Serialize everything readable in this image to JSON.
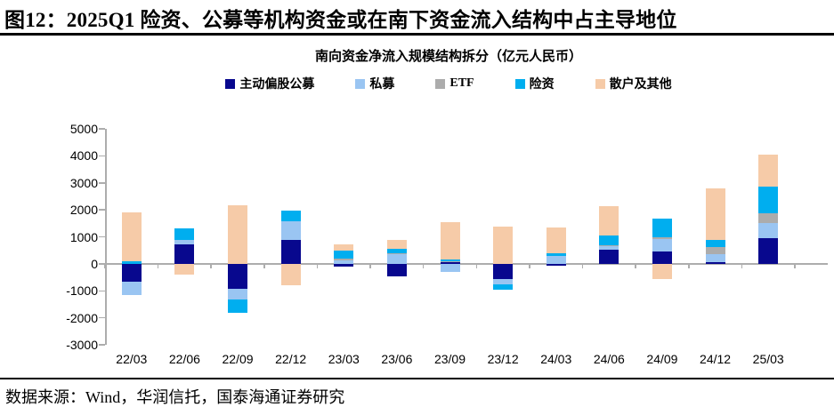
{
  "title": "图12：2025Q1 险资、公募等机构资金或在南下资金流入结构中占主导地位",
  "source": "数据来源：Wind，华润信托，国泰海通证券研究",
  "chart_data": {
    "type": "bar",
    "stacked": true,
    "title": "南向资金净流入规模结构拆分（亿元人民币）",
    "categories": [
      "22/03",
      "22/06",
      "22/09",
      "22/12",
      "23/03",
      "23/06",
      "23/09",
      "23/12",
      "24/03",
      "24/06",
      "24/09",
      "24/12",
      "25/03"
    ],
    "series": [
      {
        "name": "主动偏股公募",
        "color": "#08088E",
        "values": [
          -660,
          720,
          -940,
          890,
          -100,
          -460,
          50,
          -550,
          -60,
          520,
          465,
          50,
          950
        ]
      },
      {
        "name": "私募",
        "color": "#9AC5F2",
        "values": [
          -510,
          180,
          -375,
          700,
          130,
          370,
          -300,
          -210,
          280,
          120,
          440,
          300,
          570
        ]
      },
      {
        "name": "ETF",
        "color": "#ACACAC",
        "values": [
          0,
          0,
          0,
          0,
          60,
          30,
          60,
          0,
          0,
          40,
          85,
          260,
          350
        ]
      },
      {
        "name": "险资",
        "color": "#00AEEF",
        "values": [
          80,
          400,
          -485,
          390,
          290,
          140,
          60,
          -210,
          100,
          360,
          675,
          270,
          1000
        ]
      },
      {
        "name": "散户及其他",
        "color": "#F6CBA8",
        "values": [
          1840,
          -410,
          2180,
          -810,
          240,
          330,
          1360,
          1380,
          950,
          1100,
          -570,
          1900,
          1180
        ]
      }
    ],
    "ylim": [
      -3000,
      5000
    ],
    "ytick_interval": 1000,
    "ytick_labels": [
      "5000",
      "4000",
      "3000",
      "2000",
      "1000",
      "0",
      "-1000",
      "-2000",
      "-3000"
    ],
    "legend_position": "top",
    "grid": false,
    "axis_color": "#ADADAD"
  }
}
